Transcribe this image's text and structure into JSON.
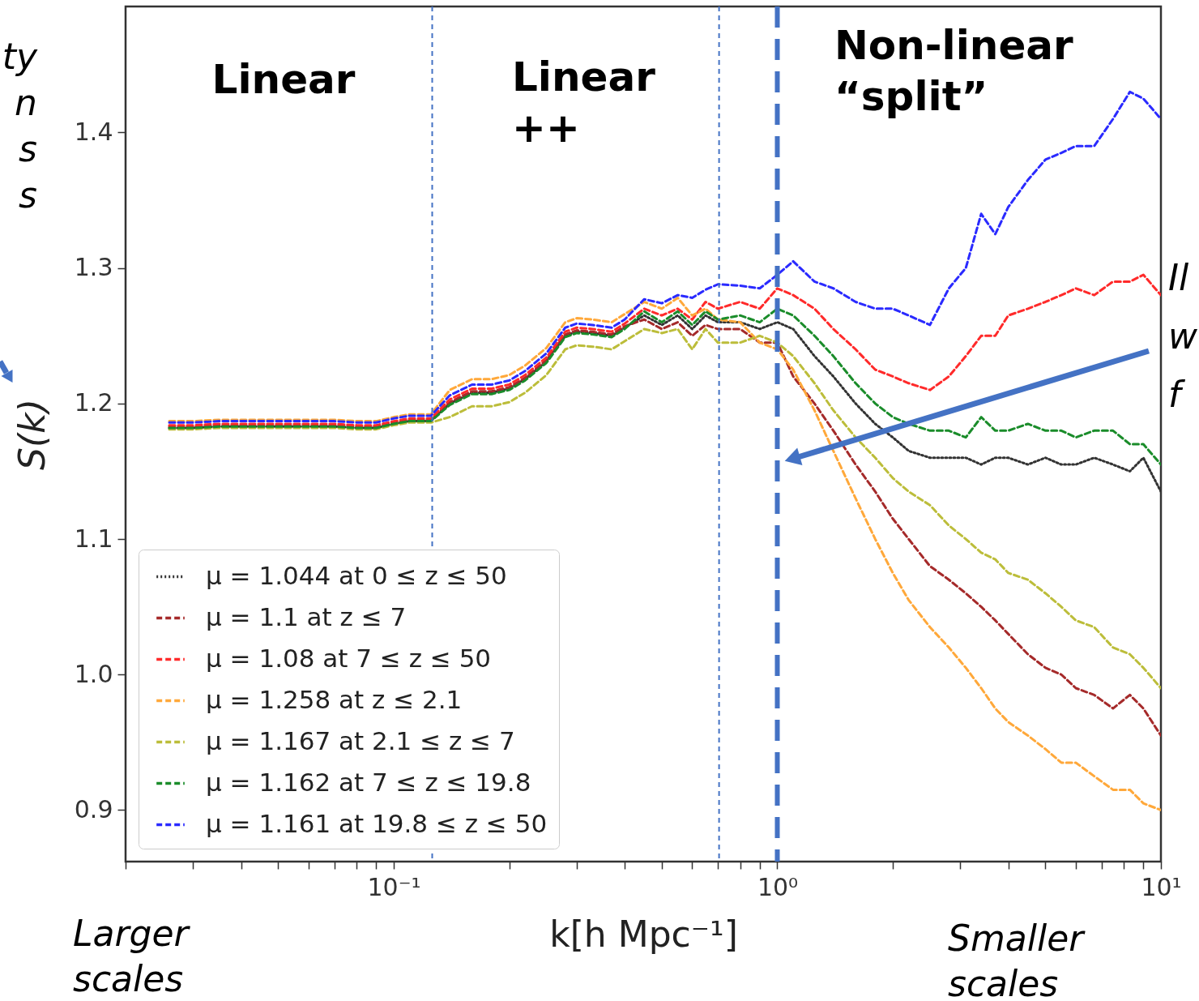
{
  "chart_data": {
    "type": "line",
    "xlabel": "k[h Mpc⁻¹]",
    "ylabel": "S(k)",
    "x": [
      0.026,
      0.03,
      0.035,
      0.04,
      0.05,
      0.06,
      0.07,
      0.08,
      0.09,
      0.1,
      0.11,
      0.125,
      0.14,
      0.16,
      0.18,
      0.2,
      0.22,
      0.25,
      0.28,
      0.3,
      0.33,
      0.37,
      0.4,
      0.45,
      0.5,
      0.55,
      0.6,
      0.65,
      0.7,
      0.8,
      0.9,
      1,
      1.1,
      1.25,
      1.4,
      1.6,
      1.8,
      2.0,
      2.2,
      2.5,
      2.8,
      3.1,
      3.4,
      3.7,
      4.0,
      4.5,
      5.0,
      5.5,
      6.0,
      6.7,
      7.5,
      8.3,
      9.0,
      10
    ],
    "series": [
      {
        "name": "μ = 1.044 at 0 ≤ z ≤ 50",
        "color": "#333333",
        "line_style": "dotted",
        "values": [
          1.182,
          1.182,
          1.183,
          1.183,
          1.183,
          1.183,
          1.183,
          1.182,
          1.182,
          1.185,
          1.187,
          1.187,
          1.2,
          1.208,
          1.208,
          1.211,
          1.218,
          1.231,
          1.25,
          1.253,
          1.252,
          1.25,
          1.256,
          1.265,
          1.258,
          1.265,
          1.255,
          1.265,
          1.26,
          1.26,
          1.255,
          1.26,
          1.255,
          1.235,
          1.22,
          1.2,
          1.185,
          1.175,
          1.165,
          1.16,
          1.16,
          1.16,
          1.155,
          1.16,
          1.16,
          1.155,
          1.16,
          1.155,
          1.155,
          1.16,
          1.155,
          1.15,
          1.16,
          1.135
        ]
      },
      {
        "name": "μ = 1.1 at z ≤ 7",
        "color": "#a52a2a",
        "line_style": "dashed",
        "values": [
          1.183,
          1.183,
          1.184,
          1.184,
          1.184,
          1.184,
          1.184,
          1.183,
          1.183,
          1.186,
          1.188,
          1.188,
          1.201,
          1.209,
          1.209,
          1.212,
          1.219,
          1.232,
          1.251,
          1.254,
          1.253,
          1.251,
          1.257,
          1.262,
          1.255,
          1.26,
          1.25,
          1.258,
          1.255,
          1.255,
          1.245,
          1.245,
          1.22,
          1.2,
          1.18,
          1.155,
          1.135,
          1.115,
          1.1,
          1.08,
          1.07,
          1.06,
          1.05,
          1.04,
          1.03,
          1.015,
          1.005,
          1.0,
          0.99,
          0.985,
          0.975,
          0.985,
          0.975,
          0.955
        ]
      },
      {
        "name": "μ = 1.08 at 7 ≤ z ≤ 50",
        "color": "#ff2a2a",
        "line_style": "dashed",
        "values": [
          1.184,
          1.184,
          1.185,
          1.185,
          1.185,
          1.185,
          1.185,
          1.184,
          1.184,
          1.187,
          1.189,
          1.189,
          1.203,
          1.211,
          1.211,
          1.214,
          1.221,
          1.234,
          1.253,
          1.256,
          1.255,
          1.253,
          1.259,
          1.27,
          1.265,
          1.27,
          1.262,
          1.275,
          1.27,
          1.275,
          1.27,
          1.285,
          1.28,
          1.27,
          1.255,
          1.24,
          1.225,
          1.22,
          1.215,
          1.21,
          1.22,
          1.235,
          1.25,
          1.25,
          1.265,
          1.27,
          1.275,
          1.28,
          1.285,
          1.28,
          1.29,
          1.29,
          1.295,
          1.28
        ]
      },
      {
        "name": "μ = 1.258 at z ≤ 2.1",
        "color": "#ffa83a",
        "line_style": "dashed",
        "values": [
          1.187,
          1.187,
          1.188,
          1.188,
          1.188,
          1.188,
          1.188,
          1.187,
          1.187,
          1.19,
          1.192,
          1.192,
          1.21,
          1.218,
          1.218,
          1.221,
          1.228,
          1.241,
          1.26,
          1.263,
          1.262,
          1.26,
          1.266,
          1.275,
          1.27,
          1.278,
          1.265,
          1.27,
          1.262,
          1.26,
          1.245,
          1.24,
          1.225,
          1.195,
          1.165,
          1.13,
          1.1,
          1.075,
          1.055,
          1.035,
          1.02,
          1.005,
          0.99,
          0.975,
          0.965,
          0.955,
          0.945,
          0.935,
          0.935,
          0.925,
          0.915,
          0.915,
          0.905,
          0.9
        ]
      },
      {
        "name": "μ = 1.167 at 2.1 ≤ z ≤ 7",
        "color": "#bcbd3a",
        "line_style": "dashed",
        "values": [
          1.181,
          1.181,
          1.182,
          1.182,
          1.182,
          1.182,
          1.182,
          1.181,
          1.181,
          1.184,
          1.186,
          1.186,
          1.19,
          1.198,
          1.198,
          1.201,
          1.208,
          1.221,
          1.24,
          1.243,
          1.242,
          1.24,
          1.246,
          1.255,
          1.252,
          1.255,
          1.24,
          1.255,
          1.245,
          1.245,
          1.25,
          1.245,
          1.235,
          1.215,
          1.195,
          1.175,
          1.16,
          1.145,
          1.135,
          1.125,
          1.11,
          1.1,
          1.09,
          1.085,
          1.075,
          1.07,
          1.06,
          1.05,
          1.04,
          1.035,
          1.02,
          1.015,
          1.005,
          0.99
        ]
      },
      {
        "name": "μ = 1.162 at 7 ≤ z ≤ 19.8",
        "color": "#1a8c2a",
        "line_style": "dashed",
        "values": [
          1.182,
          1.182,
          1.183,
          1.183,
          1.183,
          1.183,
          1.183,
          1.182,
          1.182,
          1.185,
          1.187,
          1.187,
          1.199,
          1.207,
          1.207,
          1.21,
          1.217,
          1.23,
          1.249,
          1.252,
          1.251,
          1.249,
          1.255,
          1.268,
          1.26,
          1.268,
          1.258,
          1.268,
          1.262,
          1.265,
          1.26,
          1.27,
          1.265,
          1.25,
          1.235,
          1.215,
          1.2,
          1.19,
          1.185,
          1.18,
          1.18,
          1.175,
          1.19,
          1.18,
          1.18,
          1.185,
          1.18,
          1.18,
          1.175,
          1.18,
          1.18,
          1.17,
          1.17,
          1.155
        ]
      },
      {
        "name": "μ = 1.161 at 19.8 ≤ z ≤ 50",
        "color": "#2a2aff",
        "line_style": "dashed",
        "values": [
          1.186,
          1.186,
          1.187,
          1.187,
          1.187,
          1.187,
          1.187,
          1.186,
          1.186,
          1.189,
          1.191,
          1.191,
          1.206,
          1.214,
          1.214,
          1.217,
          1.224,
          1.237,
          1.256,
          1.259,
          1.258,
          1.256,
          1.262,
          1.277,
          1.274,
          1.28,
          1.278,
          1.284,
          1.288,
          1.287,
          1.285,
          1.295,
          1.305,
          1.29,
          1.285,
          1.275,
          1.27,
          1.27,
          1.265,
          1.258,
          1.285,
          1.3,
          1.34,
          1.325,
          1.345,
          1.365,
          1.38,
          1.385,
          1.39,
          1.39,
          1.41,
          1.43,
          1.425,
          1.41
        ]
      }
    ],
    "xlim": [
      0.02,
      10
    ],
    "ylim": [
      0.862,
      1.493
    ],
    "log": "x",
    "xticks": [
      {
        "value": 0.02,
        "label": null
      },
      {
        "value": 0.03,
        "label": null
      },
      {
        "value": 0.04,
        "label": null
      },
      {
        "value": 0.05,
        "label": null
      },
      {
        "value": 0.06,
        "label": null
      },
      {
        "value": 0.07,
        "label": null
      },
      {
        "value": 0.08,
        "label": null
      },
      {
        "value": 0.09,
        "label": null
      },
      {
        "value": 0.1,
        "label": "10⁻¹"
      },
      {
        "value": 0.2,
        "label": null
      },
      {
        "value": 0.3,
        "label": null
      },
      {
        "value": 0.4,
        "label": null
      },
      {
        "value": 0.5,
        "label": null
      },
      {
        "value": 0.6,
        "label": null
      },
      {
        "value": 0.7,
        "label": null
      },
      {
        "value": 0.8,
        "label": null
      },
      {
        "value": 0.9,
        "label": null
      },
      {
        "value": 1,
        "label": "10⁰"
      },
      {
        "value": 2,
        "label": null
      },
      {
        "value": 3,
        "label": null
      },
      {
        "value": 4,
        "label": null
      },
      {
        "value": 5,
        "label": null
      },
      {
        "value": 6,
        "label": null
      },
      {
        "value": 7,
        "label": null
      },
      {
        "value": 8,
        "label": null
      },
      {
        "value": 9,
        "label": null
      },
      {
        "value": 10,
        "label": "10¹"
      }
    ],
    "yticks": [
      0.9,
      {
        "value": 1.0,
        "label": "1.0"
      },
      1.1,
      1.2,
      1.3,
      1.4
    ],
    "grid": false,
    "legend": "bottom left",
    "ref_lines": [
      {
        "axis": "x",
        "value": 0.126,
        "color": "#4472c4",
        "line_style": "dotted"
      },
      {
        "axis": "x",
        "value": 0.705,
        "color": "#4472c4",
        "line_style": "dotted"
      },
      {
        "axis": "x",
        "value": 1,
        "color": "#4472c4",
        "line_style": "dashed"
      }
    ],
    "annotations": [
      "Linear",
      "Linear\n++",
      "Non-linear\n“split”",
      "Larger\nscales",
      "Smaller\nscales",
      "ty\nn\ns\ns",
      "Il\nw\nf"
    ]
  }
}
